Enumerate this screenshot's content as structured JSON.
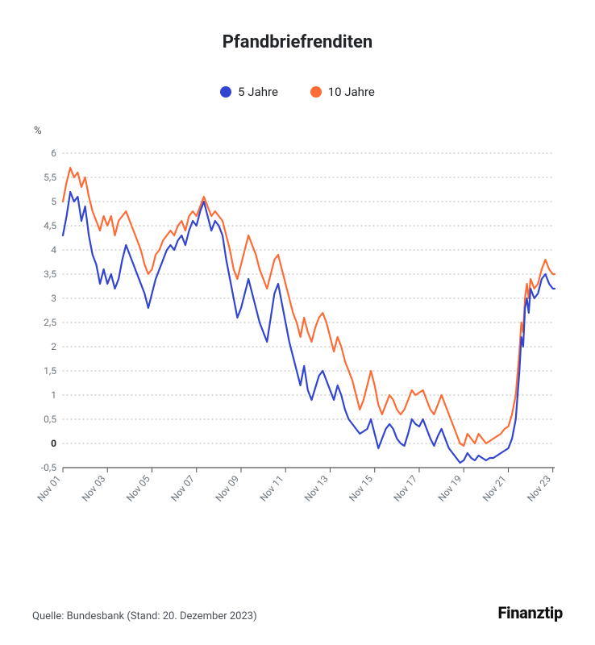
{
  "title": "Pfandbriefrenditen",
  "legend": {
    "s1": {
      "label": "5 Jahre",
      "color": "#3245d1"
    },
    "s2": {
      "label": "10 Jahre",
      "color": "#ff6b35"
    }
  },
  "chart": {
    "type": "line",
    "yaxis_title": "%",
    "ylim": [
      -0.5,
      6
    ],
    "yticks": [
      -0.5,
      0,
      0.5,
      1,
      1.5,
      2,
      2.5,
      3,
      3.5,
      4,
      4.5,
      5,
      5.5,
      6
    ],
    "ytick_labels": [
      "-0,5",
      "0",
      "0,5",
      "1",
      "1,5",
      "2",
      "2,5",
      "3",
      "3,5",
      "4",
      "4,5",
      "5",
      "5,5",
      "6"
    ],
    "xlim": [
      0,
      265
    ],
    "xticks": [
      0,
      24,
      48,
      72,
      96,
      120,
      144,
      168,
      192,
      216,
      240,
      264
    ],
    "xtick_labels": [
      "Nov 01",
      "Nov 03",
      "Nov 05",
      "Nov 07",
      "Nov 09",
      "Nov 11",
      "Nov 13",
      "Nov 15",
      "Nov 17",
      "Nov 19",
      "Nov 21",
      "Nov 23"
    ],
    "grid_color": "#b0b0b0",
    "axis_color": "#555555",
    "background_color": "#ffffff",
    "line_width": 2.2,
    "font_size_ticks": 12,
    "font_size_title": 22,
    "series": {
      "s1_5y": {
        "color": "#3245d1",
        "xy": [
          [
            0,
            4.3
          ],
          [
            2,
            4.7
          ],
          [
            4,
            5.2
          ],
          [
            6,
            5.0
          ],
          [
            8,
            5.1
          ],
          [
            10,
            4.6
          ],
          [
            12,
            4.9
          ],
          [
            14,
            4.3
          ],
          [
            16,
            3.9
          ],
          [
            18,
            3.7
          ],
          [
            20,
            3.3
          ],
          [
            22,
            3.6
          ],
          [
            24,
            3.3
          ],
          [
            26,
            3.5
          ],
          [
            28,
            3.2
          ],
          [
            30,
            3.4
          ],
          [
            32,
            3.8
          ],
          [
            34,
            4.1
          ],
          [
            36,
            3.9
          ],
          [
            38,
            3.7
          ],
          [
            40,
            3.5
          ],
          [
            42,
            3.3
          ],
          [
            44,
            3.1
          ],
          [
            46,
            2.8
          ],
          [
            48,
            3.1
          ],
          [
            50,
            3.4
          ],
          [
            52,
            3.6
          ],
          [
            54,
            3.8
          ],
          [
            56,
            4.0
          ],
          [
            58,
            4.1
          ],
          [
            60,
            4.0
          ],
          [
            62,
            4.2
          ],
          [
            64,
            4.3
          ],
          [
            66,
            4.1
          ],
          [
            68,
            4.4
          ],
          [
            70,
            4.6
          ],
          [
            72,
            4.5
          ],
          [
            74,
            4.8
          ],
          [
            76,
            5.0
          ],
          [
            78,
            4.7
          ],
          [
            80,
            4.4
          ],
          [
            82,
            4.6
          ],
          [
            84,
            4.5
          ],
          [
            86,
            4.3
          ],
          [
            88,
            3.8
          ],
          [
            90,
            3.4
          ],
          [
            92,
            3.0
          ],
          [
            94,
            2.6
          ],
          [
            96,
            2.8
          ],
          [
            98,
            3.1
          ],
          [
            100,
            3.4
          ],
          [
            102,
            3.1
          ],
          [
            104,
            2.8
          ],
          [
            106,
            2.5
          ],
          [
            108,
            2.3
          ],
          [
            110,
            2.1
          ],
          [
            112,
            2.6
          ],
          [
            114,
            3.1
          ],
          [
            116,
            3.3
          ],
          [
            118,
            2.9
          ],
          [
            120,
            2.5
          ],
          [
            122,
            2.1
          ],
          [
            124,
            1.8
          ],
          [
            126,
            1.5
          ],
          [
            128,
            1.2
          ],
          [
            130,
            1.6
          ],
          [
            132,
            1.1
          ],
          [
            134,
            0.9
          ],
          [
            138,
            1.4
          ],
          [
            140,
            1.5
          ],
          [
            142,
            1.3
          ],
          [
            144,
            1.1
          ],
          [
            146,
            0.9
          ],
          [
            148,
            1.2
          ],
          [
            150,
            1.0
          ],
          [
            152,
            0.7
          ],
          [
            154,
            0.5
          ],
          [
            156,
            0.4
          ],
          [
            158,
            0.3
          ],
          [
            160,
            0.2
          ],
          [
            162,
            0.25
          ],
          [
            164,
            0.3
          ],
          [
            166,
            0.5
          ],
          [
            168,
            0.2
          ],
          [
            170,
            -0.1
          ],
          [
            172,
            0.1
          ],
          [
            174,
            0.3
          ],
          [
            176,
            0.4
          ],
          [
            178,
            0.3
          ],
          [
            180,
            0.1
          ],
          [
            182,
            0.0
          ],
          [
            184,
            -0.05
          ],
          [
            186,
            0.2
          ],
          [
            188,
            0.5
          ],
          [
            190,
            0.4
          ],
          [
            192,
            0.35
          ],
          [
            194,
            0.5
          ],
          [
            196,
            0.3
          ],
          [
            198,
            0.1
          ],
          [
            200,
            -0.05
          ],
          [
            202,
            0.15
          ],
          [
            204,
            0.3
          ],
          [
            206,
            0.1
          ],
          [
            208,
            -0.1
          ],
          [
            210,
            -0.2
          ],
          [
            212,
            -0.3
          ],
          [
            214,
            -0.4
          ],
          [
            216,
            -0.35
          ],
          [
            218,
            -0.2
          ],
          [
            220,
            -0.3
          ],
          [
            222,
            -0.35
          ],
          [
            224,
            -0.25
          ],
          [
            226,
            -0.3
          ],
          [
            228,
            -0.35
          ],
          [
            230,
            -0.3
          ],
          [
            232,
            -0.3
          ],
          [
            234,
            -0.25
          ],
          [
            236,
            -0.2
          ],
          [
            238,
            -0.15
          ],
          [
            240,
            -0.1
          ],
          [
            242,
            0.1
          ],
          [
            244,
            0.5
          ],
          [
            246,
            1.5
          ],
          [
            247,
            2.2
          ],
          [
            248,
            2.0
          ],
          [
            249,
            2.8
          ],
          [
            250,
            3.0
          ],
          [
            251,
            2.7
          ],
          [
            252,
            3.2
          ],
          [
            254,
            3.0
          ],
          [
            256,
            3.1
          ],
          [
            258,
            3.4
          ],
          [
            260,
            3.5
          ],
          [
            262,
            3.3
          ],
          [
            264,
            3.2
          ],
          [
            265,
            3.2
          ]
        ]
      },
      "s2_10y": {
        "color": "#ff6b35",
        "xy": [
          [
            0,
            5.0
          ],
          [
            2,
            5.4
          ],
          [
            4,
            5.7
          ],
          [
            6,
            5.5
          ],
          [
            8,
            5.6
          ],
          [
            10,
            5.3
          ],
          [
            12,
            5.5
          ],
          [
            14,
            5.1
          ],
          [
            16,
            4.8
          ],
          [
            18,
            4.6
          ],
          [
            20,
            4.4
          ],
          [
            22,
            4.7
          ],
          [
            24,
            4.5
          ],
          [
            26,
            4.7
          ],
          [
            28,
            4.3
          ],
          [
            30,
            4.6
          ],
          [
            32,
            4.7
          ],
          [
            34,
            4.8
          ],
          [
            36,
            4.6
          ],
          [
            38,
            4.4
          ],
          [
            40,
            4.2
          ],
          [
            42,
            4.0
          ],
          [
            44,
            3.7
          ],
          [
            46,
            3.5
          ],
          [
            48,
            3.6
          ],
          [
            50,
            3.9
          ],
          [
            52,
            4.0
          ],
          [
            54,
            4.2
          ],
          [
            56,
            4.3
          ],
          [
            58,
            4.4
          ],
          [
            60,
            4.3
          ],
          [
            62,
            4.5
          ],
          [
            64,
            4.6
          ],
          [
            66,
            4.4
          ],
          [
            68,
            4.7
          ],
          [
            70,
            4.8
          ],
          [
            72,
            4.7
          ],
          [
            74,
            4.9
          ],
          [
            76,
            5.1
          ],
          [
            78,
            4.9
          ],
          [
            80,
            4.7
          ],
          [
            82,
            4.8
          ],
          [
            84,
            4.7
          ],
          [
            86,
            4.6
          ],
          [
            88,
            4.3
          ],
          [
            90,
            4.0
          ],
          [
            92,
            3.6
          ],
          [
            94,
            3.4
          ],
          [
            96,
            3.7
          ],
          [
            98,
            4.0
          ],
          [
            100,
            4.3
          ],
          [
            102,
            4.1
          ],
          [
            104,
            3.9
          ],
          [
            106,
            3.6
          ],
          [
            108,
            3.4
          ],
          [
            110,
            3.2
          ],
          [
            112,
            3.5
          ],
          [
            114,
            3.8
          ],
          [
            116,
            3.9
          ],
          [
            118,
            3.6
          ],
          [
            120,
            3.3
          ],
          [
            122,
            3.0
          ],
          [
            124,
            2.7
          ],
          [
            126,
            2.5
          ],
          [
            128,
            2.2
          ],
          [
            130,
            2.6
          ],
          [
            132,
            2.3
          ],
          [
            134,
            2.1
          ],
          [
            136,
            2.4
          ],
          [
            138,
            2.6
          ],
          [
            140,
            2.7
          ],
          [
            142,
            2.5
          ],
          [
            144,
            2.2
          ],
          [
            146,
            1.9
          ],
          [
            148,
            2.2
          ],
          [
            150,
            2.0
          ],
          [
            152,
            1.7
          ],
          [
            154,
            1.5
          ],
          [
            156,
            1.3
          ],
          [
            158,
            1.0
          ],
          [
            160,
            0.7
          ],
          [
            162,
            0.9
          ],
          [
            164,
            1.2
          ],
          [
            166,
            1.5
          ],
          [
            168,
            1.2
          ],
          [
            170,
            0.8
          ],
          [
            172,
            0.6
          ],
          [
            174,
            0.8
          ],
          [
            176,
            1.0
          ],
          [
            178,
            0.9
          ],
          [
            180,
            0.7
          ],
          [
            182,
            0.6
          ],
          [
            184,
            0.7
          ],
          [
            186,
            0.9
          ],
          [
            188,
            1.1
          ],
          [
            190,
            1.0
          ],
          [
            192,
            1.05
          ],
          [
            194,
            1.1
          ],
          [
            196,
            0.9
          ],
          [
            198,
            0.7
          ],
          [
            200,
            0.6
          ],
          [
            202,
            0.8
          ],
          [
            204,
            1.0
          ],
          [
            206,
            0.8
          ],
          [
            208,
            0.6
          ],
          [
            210,
            0.4
          ],
          [
            212,
            0.2
          ],
          [
            214,
            0.0
          ],
          [
            216,
            -0.05
          ],
          [
            218,
            0.2
          ],
          [
            220,
            0.1
          ],
          [
            222,
            0.0
          ],
          [
            224,
            0.2
          ],
          [
            226,
            0.1
          ],
          [
            228,
            0.0
          ],
          [
            230,
            0.05
          ],
          [
            232,
            0.1
          ],
          [
            234,
            0.15
          ],
          [
            236,
            0.2
          ],
          [
            238,
            0.3
          ],
          [
            240,
            0.35
          ],
          [
            242,
            0.6
          ],
          [
            244,
            1.0
          ],
          [
            246,
            1.9
          ],
          [
            247,
            2.5
          ],
          [
            248,
            2.3
          ],
          [
            249,
            3.0
          ],
          [
            250,
            3.3
          ],
          [
            251,
            3.0
          ],
          [
            252,
            3.4
          ],
          [
            254,
            3.2
          ],
          [
            256,
            3.3
          ],
          [
            258,
            3.6
          ],
          [
            260,
            3.8
          ],
          [
            262,
            3.6
          ],
          [
            264,
            3.5
          ],
          [
            265,
            3.5
          ]
        ]
      }
    }
  },
  "footer": {
    "source": "Quelle: Bundesbank (Stand: 20. Dezember 2023)",
    "brand": "Finanztip"
  }
}
